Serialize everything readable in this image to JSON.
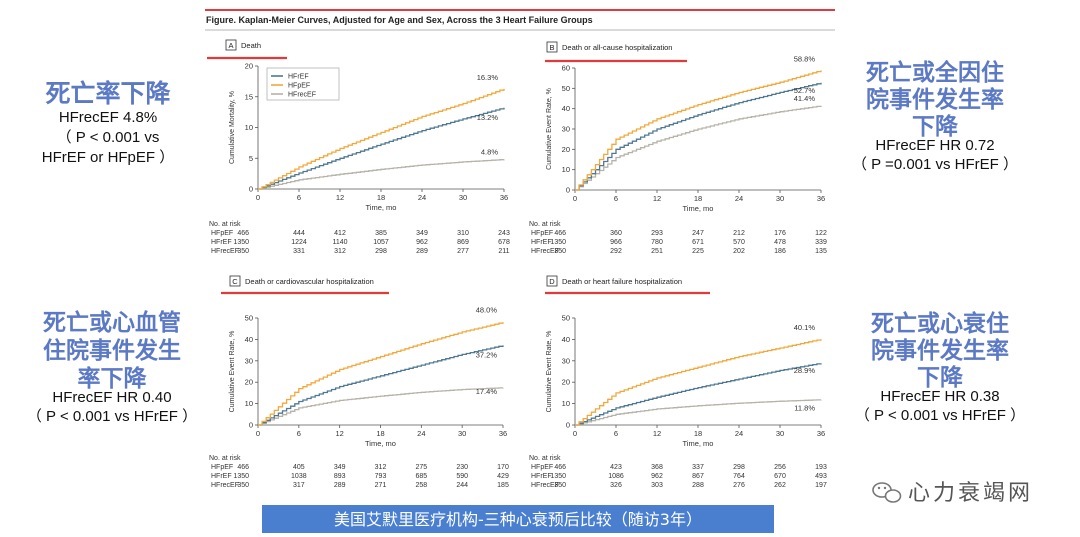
{
  "figure_title": "Figure. Kaplan-Meier Curves, Adjusted for Age and Sex, Across the 3 Heart Failure Groups",
  "axis_common": {
    "xlabel": "Time, mo",
    "xticks": [
      0,
      6,
      12,
      18,
      24,
      30,
      36
    ]
  },
  "risk_header": "No. at risk",
  "colors": {
    "HFpEF": "#f2a93b",
    "HFrEF": "#4f7993",
    "HFrecEF": "#b7b3a8",
    "red": "#e03a3a",
    "annotation": "#5b79c4",
    "banner": "#4a7fd0"
  },
  "chart_data": [
    {
      "type": "line",
      "letter": "A",
      "title": "Death",
      "ylabel": "Cumulative Mortality, %",
      "ylim": [
        0,
        20
      ],
      "yticks": [
        0,
        5,
        10,
        15,
        20
      ],
      "x": [
        0,
        6,
        12,
        18,
        24,
        30,
        36
      ],
      "legend": [
        "HFrEF",
        "HFpEF",
        "HFrecEF"
      ],
      "series": [
        {
          "name": "HFpEF",
          "values": [
            0,
            3.6,
            6.6,
            9.2,
            11.8,
            13.9,
            16.3
          ],
          "end_label": "16.3%"
        },
        {
          "name": "HFrEF",
          "values": [
            0,
            2.6,
            5.0,
            7.3,
            9.5,
            11.4,
            13.2
          ],
          "end_label": "13.2%"
        },
        {
          "name": "HFrecEF",
          "values": [
            0,
            1.5,
            2.4,
            3.2,
            3.9,
            4.4,
            4.8
          ],
          "end_label": "4.8%"
        }
      ],
      "risk_table": [
        {
          "group": "HFpEF",
          "values": [
            "466",
            "444",
            "412",
            "385",
            "349",
            "310",
            "243"
          ]
        },
        {
          "group": "HFrEF",
          "values": [
            "1350",
            "1224",
            "1140",
            "1057",
            "962",
            "869",
            "678"
          ]
        },
        {
          "group": "HFrecEF",
          "values": [
            "350",
            "331",
            "312",
            "298",
            "289",
            "277",
            "211"
          ]
        }
      ]
    },
    {
      "type": "line",
      "letter": "B",
      "title": "Death or all-cause hospitalization",
      "ylabel": "Cumulative Event Rate, %",
      "ylim": [
        0,
        60
      ],
      "yticks": [
        0,
        10,
        20,
        30,
        40,
        50,
        60
      ],
      "x": [
        0,
        6,
        12,
        18,
        24,
        30,
        36
      ],
      "legend": [],
      "series": [
        {
          "name": "HFpEF",
          "values": [
            0,
            25,
            35,
            42,
            48,
            53,
            58.8
          ],
          "end_label": "58.8%"
        },
        {
          "name": "HFrEF",
          "values": [
            0,
            20,
            30,
            37,
            43,
            48,
            52.7
          ],
          "end_label": "52.7%"
        },
        {
          "name": "HFrecEF",
          "values": [
            0,
            16,
            24,
            30,
            35,
            38.5,
            41.4
          ],
          "end_label": "41.4%"
        }
      ],
      "risk_table": [
        {
          "group": "HFpEF",
          "values": [
            "466",
            "360",
            "293",
            "247",
            "212",
            "176",
            "122"
          ]
        },
        {
          "group": "HFrEF",
          "values": [
            "1350",
            "966",
            "780",
            "671",
            "570",
            "478",
            "339"
          ]
        },
        {
          "group": "HFrecEF",
          "values": [
            "350",
            "292",
            "251",
            "225",
            "202",
            "186",
            "135"
          ]
        }
      ]
    },
    {
      "type": "line",
      "letter": "C",
      "title": "Death or cardiovascular hospitalization",
      "ylabel": "Cumulative Event Rate, %",
      "ylim": [
        0,
        50
      ],
      "yticks": [
        0,
        10,
        20,
        30,
        40,
        50
      ],
      "x": [
        0,
        6,
        12,
        18,
        24,
        30,
        36
      ],
      "legend": [],
      "series": [
        {
          "name": "HFpEF",
          "values": [
            0,
            17,
            26,
            32,
            38,
            43.5,
            48.0
          ],
          "end_label": "48.0%"
        },
        {
          "name": "HFrEF",
          "values": [
            0,
            11,
            18,
            23,
            28,
            33,
            37.2
          ],
          "end_label": "37.2%"
        },
        {
          "name": "HFrecEF",
          "values": [
            0,
            8,
            11.5,
            13.5,
            15.3,
            16.6,
            17.4
          ],
          "end_label": "17.4%"
        }
      ],
      "risk_table": [
        {
          "group": "HFpEF",
          "values": [
            "466",
            "405",
            "349",
            "312",
            "275",
            "230",
            "170"
          ]
        },
        {
          "group": "HFrEF",
          "values": [
            "1350",
            "1038",
            "893",
            "793",
            "685",
            "590",
            "429"
          ]
        },
        {
          "group": "HFrecEF",
          "values": [
            "350",
            "317",
            "289",
            "271",
            "258",
            "244",
            "185"
          ]
        }
      ]
    },
    {
      "type": "line",
      "letter": "D",
      "title": "Death or heart failure hospitalization",
      "ylabel": "Cumulative Event Rate, %",
      "ylim": [
        0,
        50
      ],
      "yticks": [
        0,
        10,
        20,
        30,
        40,
        50
      ],
      "x": [
        0,
        6,
        12,
        18,
        24,
        30,
        36
      ],
      "legend": [],
      "series": [
        {
          "name": "HFpEF",
          "values": [
            0,
            15,
            22,
            27,
            32,
            36,
            40.1
          ],
          "end_label": "40.1%"
        },
        {
          "name": "HFrEF",
          "values": [
            0,
            8,
            13,
            17.5,
            21.5,
            25.5,
            28.9
          ],
          "end_label": "28.9%"
        },
        {
          "name": "HFrecEF",
          "values": [
            0,
            5,
            7.5,
            9,
            10.2,
            11.1,
            11.8
          ],
          "end_label": "11.8%"
        }
      ],
      "risk_table": [
        {
          "group": "HFpEF",
          "values": [
            "466",
            "423",
            "368",
            "337",
            "298",
            "256",
            "193"
          ]
        },
        {
          "group": "HFrEF",
          "values": [
            "1350",
            "1086",
            "962",
            "867",
            "764",
            "670",
            "493"
          ]
        },
        {
          "group": "HFrecEF",
          "values": [
            "350",
            "326",
            "303",
            "288",
            "276",
            "262",
            "197"
          ]
        }
      ]
    }
  ],
  "annotations": {
    "tl": {
      "title": [
        "死亡率下降"
      ],
      "body": [
        "HFrecEF 4.8%",
        "（ P < 0.001 vs",
        "HFrEF or HFpEF ）"
      ]
    },
    "tr": {
      "title": [
        "死亡或全因住",
        "院事件发生率",
        "下降"
      ],
      "body": [
        "HFrecEF  HR 0.72",
        "（ P =0.001 vs HFrEF ）"
      ]
    },
    "bl": {
      "title": [
        "死亡或心血管",
        "住院事件发生",
        "率下降"
      ],
      "body": [
        "HFrecEF  HR 0.40",
        "（ P < 0.001 vs HFrEF ）"
      ]
    },
    "br": {
      "title": [
        "死亡或心衰住",
        "院事件发生率",
        "下降"
      ],
      "body": [
        "HFrecEF  HR 0.38",
        "（ P < 0.001 vs HFrEF ）"
      ]
    }
  },
  "watermark": "心力衰竭网",
  "banner": "美国艾默里医疗机构-三种心衰预后比较（随访3年）"
}
